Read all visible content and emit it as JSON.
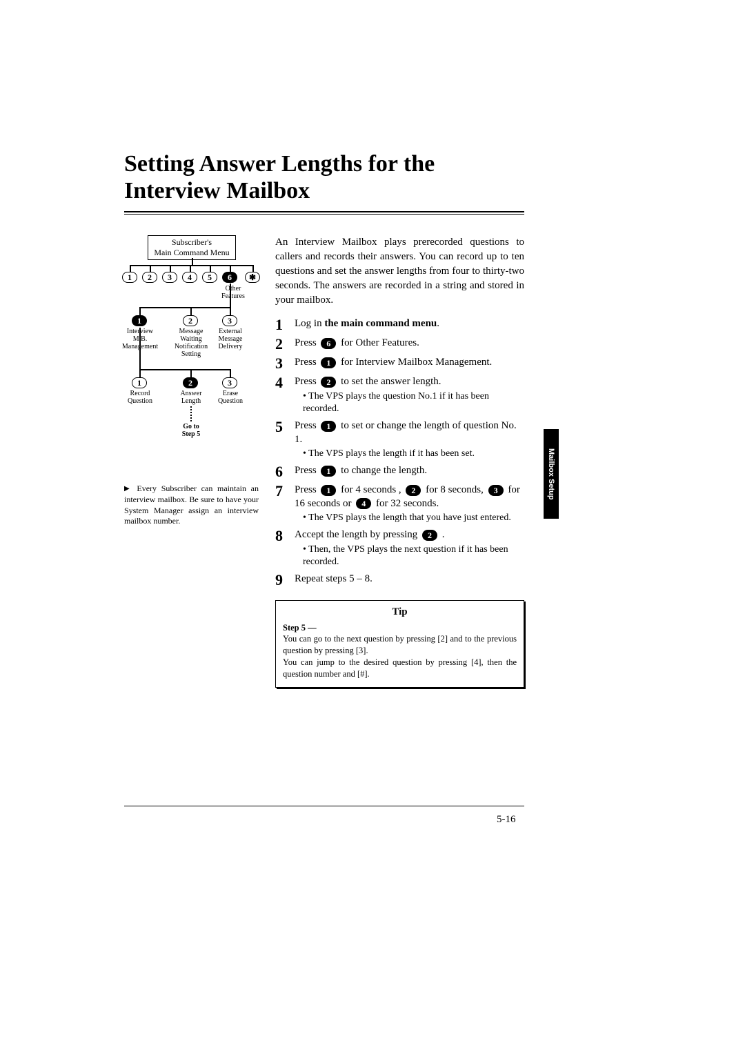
{
  "title": "Setting Answer Lengths for the Interview Mailbox",
  "intro": "An Interview Mailbox plays prerecorded questions to callers and records their answers. You can record up to ten questions and set the answer lengths from four to thirty-two seconds. The answers are recorded in a string and stored in your mailbox.",
  "diagram": {
    "menu_box": "Subscriber's\nMain Command Menu",
    "row1": [
      "1",
      "2",
      "3",
      "4",
      "5",
      "6",
      "✱"
    ],
    "row1_solid_index": 5,
    "row1_sub_label": "Other\nFeatures",
    "row2": [
      {
        "num": "1",
        "label": "Interview\nM.B.\nManagement",
        "solid": true
      },
      {
        "num": "2",
        "label": "Message\nWaiting\nNotification\nSetting",
        "solid": false
      },
      {
        "num": "3",
        "label": "External\nMessage\nDelivery",
        "solid": false
      }
    ],
    "row3": [
      {
        "num": "1",
        "label": "Record\nQuestion",
        "solid": false
      },
      {
        "num": "2",
        "label": "Answer\nLength",
        "solid": true
      },
      {
        "num": "3",
        "label": "Erase\nQuestion",
        "solid": false
      }
    ],
    "goto": "Go to\nStep 5"
  },
  "note": "Every Subscriber can maintain an interview mailbox. Be sure to have your System Manager assign an interview mailbox number.",
  "steps": [
    {
      "n": "1",
      "pre": "Log in ",
      "bold": "the main command menu",
      "post": ".",
      "sub": null
    },
    {
      "n": "2",
      "pre": "Press ",
      "key": "6",
      "post": " for Other Features.",
      "sub": null
    },
    {
      "n": "3",
      "pre": "Press ",
      "key": "1",
      "post": " for Interview Mailbox Management.",
      "sub": null
    },
    {
      "n": "4",
      "pre": "Press ",
      "key": "2",
      "post": " to set the answer length.",
      "sub": "• The VPS plays the question No.1 if it has been recorded."
    },
    {
      "n": "5",
      "pre": "Press ",
      "key": "1",
      "post": " to set or change the length of question No. 1.",
      "sub": "• The VPS plays the length if it has been set."
    },
    {
      "n": "6",
      "pre": "Press ",
      "key": "1",
      "post": " to change the length.",
      "sub": null
    },
    {
      "n": "7",
      "multi": true,
      "parts": [
        {
          "t": "Press "
        },
        {
          "k": "1"
        },
        {
          "t": " for 4 seconds , "
        },
        {
          "k": "2"
        },
        {
          "t": " for 8 seconds, "
        },
        {
          "k": "3"
        },
        {
          "t": " for 16 seconds or "
        },
        {
          "k": "4"
        },
        {
          "t": " for 32 seconds."
        }
      ],
      "sub": "• The VPS plays the length that you have just entered."
    },
    {
      "n": "8",
      "pre": "Accept the length by pressing ",
      "key": "2",
      "post": " .",
      "sub": "• Then, the VPS plays the next question if it has been recorded."
    },
    {
      "n": "9",
      "pre": "Repeat steps 5 – 8.",
      "key": null,
      "post": "",
      "sub": null
    }
  ],
  "tip": {
    "title": "Tip",
    "step": "Step 5 —",
    "body1": "You can go to the next question by pressing [2] and to the previous question by pressing [3].",
    "body2": "You can jump to the desired question by pressing [4], then the question number and [#]."
  },
  "side_tab": "Mailbox Setup",
  "page_num": "5-16"
}
